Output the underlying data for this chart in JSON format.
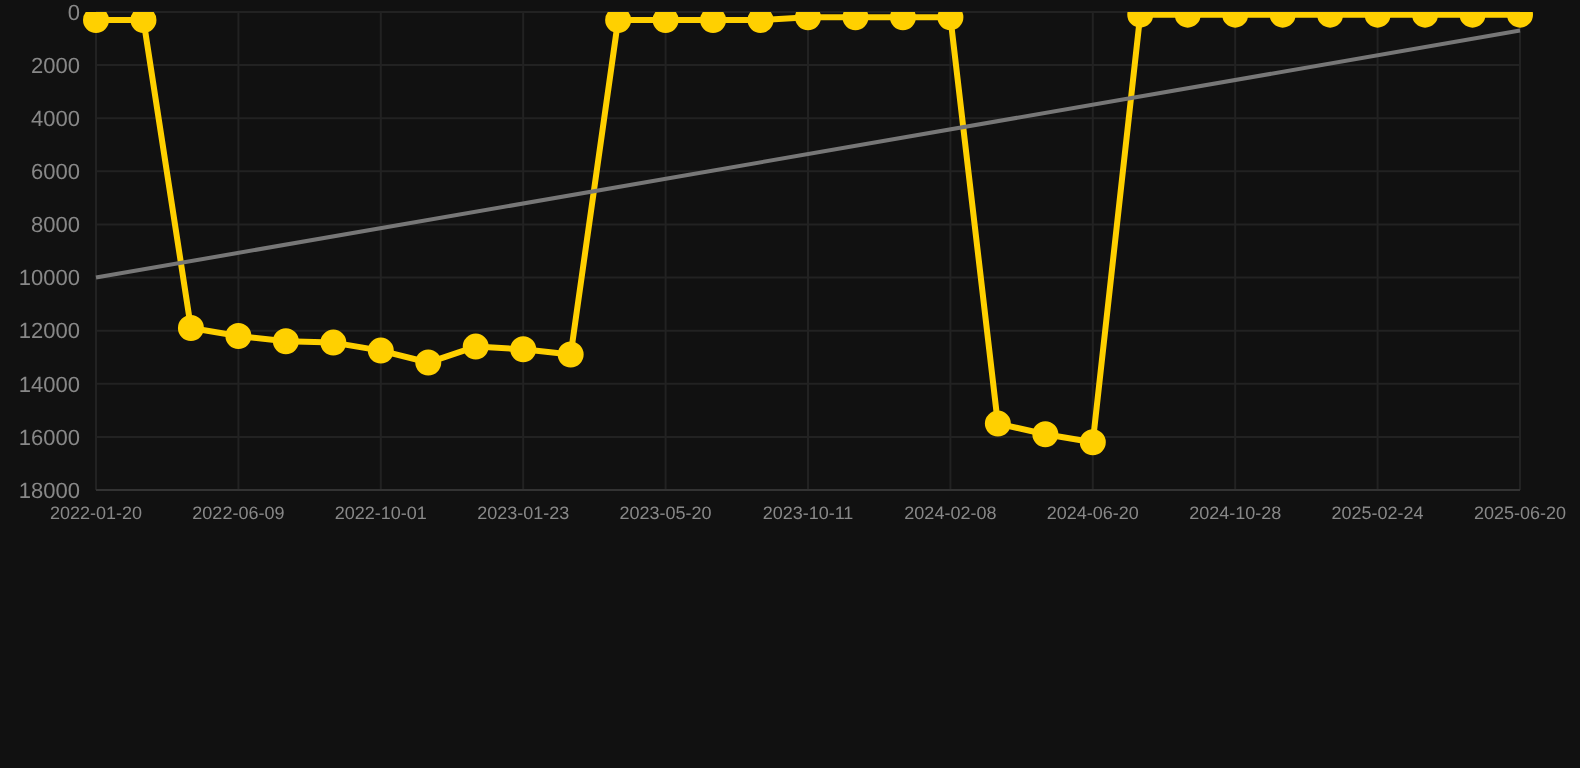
{
  "chart_data": {
    "type": "line",
    "categories": [
      "2022-01-20",
      null,
      null,
      "2022-06-09",
      null,
      null,
      "2022-10-01",
      null,
      null,
      "2023-01-23",
      null,
      null,
      "2023-05-20",
      null,
      null,
      "2023-10-11",
      null,
      null,
      "2024-02-08",
      null,
      null,
      "2024-06-20",
      null,
      null,
      "2024-10-28",
      null,
      null,
      "2025-02-24",
      null,
      null,
      "2025-06-20"
    ],
    "series": [
      {
        "color": "#ffd000",
        "marker": "circle",
        "values": [
          300,
          300,
          11900,
          12200,
          12400,
          12450,
          12750,
          13200,
          12600,
          12700,
          12900,
          300,
          300,
          300,
          300,
          200,
          200,
          200,
          200,
          15500,
          15900,
          16200,
          100,
          100,
          100,
          100,
          100,
          100,
          100,
          100,
          100
        ]
      },
      {
        "color": "#777777",
        "marker": "none",
        "values": [
          10000,
          null,
          null,
          null,
          null,
          null,
          null,
          null,
          null,
          null,
          null,
          null,
          null,
          null,
          null,
          null,
          null,
          null,
          null,
          null,
          null,
          null,
          null,
          null,
          null,
          null,
          null,
          null,
          null,
          null,
          700
        ]
      }
    ],
    "ylim": [
      18000,
      0
    ],
    "yticks": [
      0,
      2000,
      4000,
      6000,
      8000,
      10000,
      12000,
      14000,
      16000,
      18000
    ],
    "grid": true
  }
}
